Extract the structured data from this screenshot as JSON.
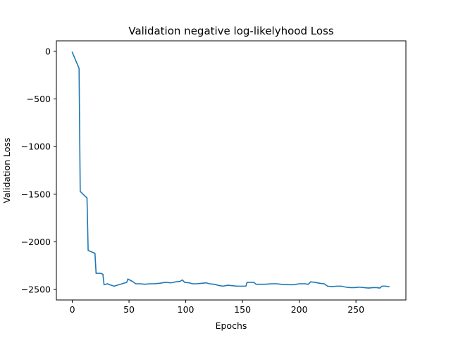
{
  "chart_data": {
    "type": "line",
    "title": "Validation negative log-likelyhood Loss",
    "xlabel": "Epochs",
    "ylabel": "Validation Loss",
    "xlim": [
      -14,
      294
    ],
    "ylim": [
      -2610,
      110
    ],
    "xticks": [
      0,
      50,
      100,
      150,
      200,
      250
    ],
    "yticks": [
      0,
      -500,
      -1000,
      -1500,
      -2000,
      -2500
    ],
    "xtick_labels": [
      "0",
      "50",
      "100",
      "150",
      "200",
      "250"
    ],
    "ytick_labels": [
      "0",
      "−500",
      "−1000",
      "−1500",
      "−2000",
      "−2500"
    ],
    "grid": false,
    "color": "#1f77b4",
    "series": [
      {
        "x": [
          0,
          6,
          7,
          13,
          14,
          20,
          21,
          25,
          27,
          28,
          31,
          33,
          37,
          41,
          48,
          49,
          53,
          56,
          60,
          64,
          68,
          72,
          77,
          82,
          87,
          91,
          95,
          97,
          99,
          103,
          106,
          110,
          114,
          118,
          121,
          125,
          130,
          133,
          137,
          141,
          145,
          149,
          153,
          154,
          160,
          162,
          165,
          170,
          175,
          180,
          184,
          190,
          195,
          200,
          205,
          208,
          210,
          214,
          218,
          222,
          225,
          229,
          233,
          237,
          241,
          245,
          249,
          253,
          257,
          261,
          265,
          268,
          271,
          273,
          276,
          279
        ],
        "y": [
          -10,
          -180,
          -1470,
          -1540,
          -2090,
          -2120,
          -2330,
          -2330,
          -2340,
          -2450,
          -2440,
          -2450,
          -2465,
          -2450,
          -2425,
          -2390,
          -2415,
          -2440,
          -2440,
          -2445,
          -2440,
          -2440,
          -2435,
          -2425,
          -2430,
          -2420,
          -2415,
          -2400,
          -2425,
          -2430,
          -2440,
          -2440,
          -2435,
          -2430,
          -2440,
          -2445,
          -2460,
          -2465,
          -2455,
          -2460,
          -2465,
          -2465,
          -2465,
          -2425,
          -2425,
          -2445,
          -2445,
          -2445,
          -2440,
          -2440,
          -2445,
          -2450,
          -2450,
          -2440,
          -2440,
          -2445,
          -2420,
          -2425,
          -2435,
          -2440,
          -2465,
          -2470,
          -2465,
          -2465,
          -2475,
          -2480,
          -2480,
          -2475,
          -2480,
          -2485,
          -2480,
          -2480,
          -2485,
          -2465,
          -2465,
          -2470
        ]
      }
    ]
  }
}
